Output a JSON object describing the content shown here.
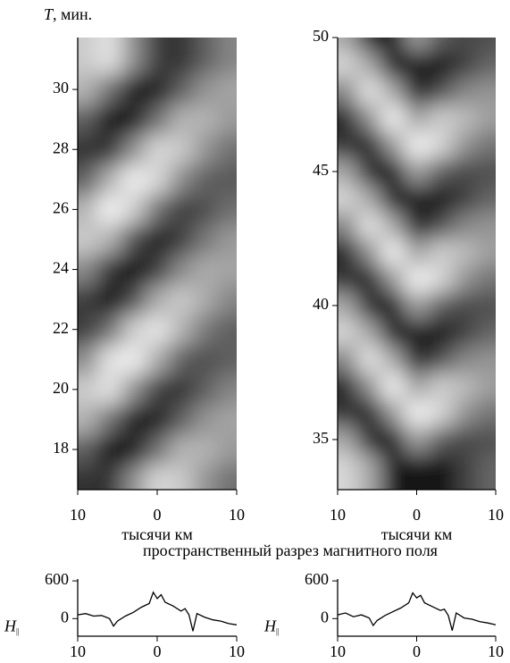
{
  "chart_data": [
    {
      "type": "heatmap",
      "x": [
        -9,
        -6,
        -3,
        0,
        3,
        6,
        9
      ],
      "y": [
        17,
        18,
        19,
        20,
        21,
        22,
        23,
        24,
        25,
        26,
        27,
        28,
        29,
        30,
        31
      ],
      "z": [
        [
          0.2,
          0.2,
          0.56,
          0.84,
          0.79,
          0.58,
          0.44
        ],
        [
          0.37,
          0.07,
          0.12,
          0.44,
          0.7,
          0.7,
          0.6
        ],
        [
          0.7,
          0.44,
          0.12,
          0.12,
          0.37,
          0.58,
          0.64
        ],
        [
          0.79,
          0.88,
          0.56,
          0.24,
          0.2,
          0.37,
          0.52
        ],
        [
          0.54,
          0.88,
          0.93,
          0.67,
          0.37,
          0.31,
          0.37
        ],
        [
          0.25,
          0.44,
          0.8,
          0.9,
          0.7,
          0.47,
          0.37
        ],
        [
          0.25,
          0.07,
          0.31,
          0.67,
          0.79,
          0.67,
          0.52
        ],
        [
          0.54,
          0.2,
          0.05,
          0.24,
          0.54,
          0.67,
          0.64
        ],
        [
          0.79,
          0.69,
          0.31,
          0.12,
          0.25,
          0.47,
          0.6
        ],
        [
          0.7,
          0.95,
          0.8,
          0.44,
          0.25,
          0.31,
          0.44
        ],
        [
          0.37,
          0.69,
          0.93,
          0.84,
          0.54,
          0.37,
          0.35
        ],
        [
          0.2,
          0.2,
          0.56,
          0.84,
          0.79,
          0.58,
          0.44
        ],
        [
          0.37,
          0.07,
          0.12,
          0.44,
          0.7,
          0.7,
          0.6
        ],
        [
          0.7,
          0.44,
          0.12,
          0.12,
          0.37,
          0.58,
          0.64
        ],
        [
          0.79,
          0.88,
          0.56,
          0.24,
          0.2,
          0.37,
          0.52
        ]
      ],
      "xlim": [
        -10,
        10
      ],
      "ylim": [
        16.66,
        31.73
      ],
      "xticks": [
        {
          "value": -10,
          "label": "10"
        },
        0,
        10
      ],
      "yticks": [
        18,
        20,
        22,
        24,
        26,
        28,
        30
      ],
      "xlabel": "тысячи км",
      "ylabel_symbol": "T",
      "ylabel_unit": ", мин."
    },
    {
      "type": "heatmap",
      "x": [
        -9,
        -6,
        -3,
        0,
        3,
        6,
        9
      ],
      "y": [
        34,
        35,
        36,
        37,
        38,
        39,
        40,
        41,
        42,
        43,
        44,
        45,
        46,
        47,
        48,
        49,
        50
      ],
      "z": [
        [
          0.84,
          0.67,
          0.15,
          0.14,
          0.1,
          0.28,
          0.43
        ],
        [
          0.67,
          0.21,
          0.12,
          0.64,
          0.4,
          0.32,
          0.35
        ],
        [
          0.26,
          0.15,
          0.61,
          0.95,
          0.84,
          0.6,
          0.48
        ],
        [
          0.18,
          0.58,
          0.95,
          0.64,
          0.81,
          0.75,
          0.64
        ],
        [
          0.54,
          0.9,
          0.67,
          0.14,
          0.35,
          0.55,
          0.6
        ],
        [
          0.84,
          0.67,
          0.15,
          0.14,
          0.1,
          0.28,
          0.43
        ],
        [
          0.67,
          0.21,
          0.12,
          0.64,
          0.4,
          0.32,
          0.35
        ],
        [
          0.26,
          0.15,
          0.61,
          0.95,
          0.84,
          0.6,
          0.48
        ],
        [
          0.18,
          0.58,
          0.95,
          0.64,
          0.81,
          0.75,
          0.64
        ],
        [
          0.54,
          0.9,
          0.67,
          0.14,
          0.35,
          0.55,
          0.6
        ],
        [
          0.84,
          0.67,
          0.15,
          0.14,
          0.1,
          0.28,
          0.43
        ],
        [
          0.67,
          0.21,
          0.12,
          0.64,
          0.4,
          0.32,
          0.35
        ],
        [
          0.26,
          0.15,
          0.61,
          0.95,
          0.84,
          0.6,
          0.48
        ],
        [
          0.18,
          0.58,
          0.95,
          0.64,
          0.81,
          0.75,
          0.64
        ],
        [
          0.54,
          0.9,
          0.67,
          0.14,
          0.35,
          0.55,
          0.6
        ],
        [
          0.84,
          0.67,
          0.15,
          0.14,
          0.1,
          0.28,
          0.43
        ],
        [
          0.67,
          0.21,
          0.12,
          0.64,
          0.4,
          0.32,
          0.35
        ]
      ],
      "xlim": [
        -10,
        10
      ],
      "ylim": [
        33.13,
        50
      ],
      "xticks": [
        {
          "value": -10,
          "label": "10"
        },
        0,
        10
      ],
      "yticks": [
        35,
        40,
        45,
        50
      ],
      "xlabel": "тысячи км"
    },
    {
      "type": "line",
      "color": "#000000",
      "x": [
        -10,
        -9,
        -8,
        -7,
        -6,
        -5.5,
        -5,
        -4,
        -3,
        -2,
        -1,
        -0.5,
        0,
        0.5,
        1,
        2,
        3,
        3.5,
        4,
        4.5,
        5,
        6,
        7,
        8,
        9,
        10
      ],
      "values": [
        60,
        80,
        40,
        50,
        0,
        -120,
        -40,
        40,
        100,
        180,
        240,
        420,
        320,
        380,
        260,
        200,
        120,
        160,
        60,
        -200,
        80,
        20,
        -20,
        -40,
        -80,
        -100
      ],
      "xlim": [
        -10,
        10
      ],
      "ylim": [
        -280,
        630
      ],
      "xticks": [
        {
          "value": -10,
          "label": "10"
        },
        0,
        10
      ],
      "yticks": [
        0,
        600
      ],
      "ylabel": "H",
      "ylabel_sub": "||"
    },
    {
      "type": "line",
      "color": "#000000",
      "x": [
        -10,
        -9,
        -8,
        -7,
        -6,
        -5.5,
        -5,
        -4,
        -3,
        -2,
        -1,
        -0.5,
        0,
        0.5,
        1,
        2,
        3,
        3.5,
        4,
        4.5,
        5,
        6,
        7,
        8,
        9,
        10
      ],
      "values": [
        60,
        90,
        30,
        60,
        10,
        -110,
        -30,
        50,
        110,
        170,
        250,
        410,
        330,
        370,
        250,
        190,
        130,
        150,
        50,
        -190,
        90,
        10,
        -10,
        -50,
        -70,
        -100
      ],
      "xlim": [
        -10,
        10
      ],
      "ylim": [
        -280,
        630
      ],
      "xticks": [
        {
          "value": -10,
          "label": "10"
        },
        0,
        10
      ],
      "yticks": [
        0,
        600
      ],
      "ylabel": "H",
      "ylabel_sub": "||"
    }
  ],
  "caption": "пространственный разрез магнитного поля"
}
